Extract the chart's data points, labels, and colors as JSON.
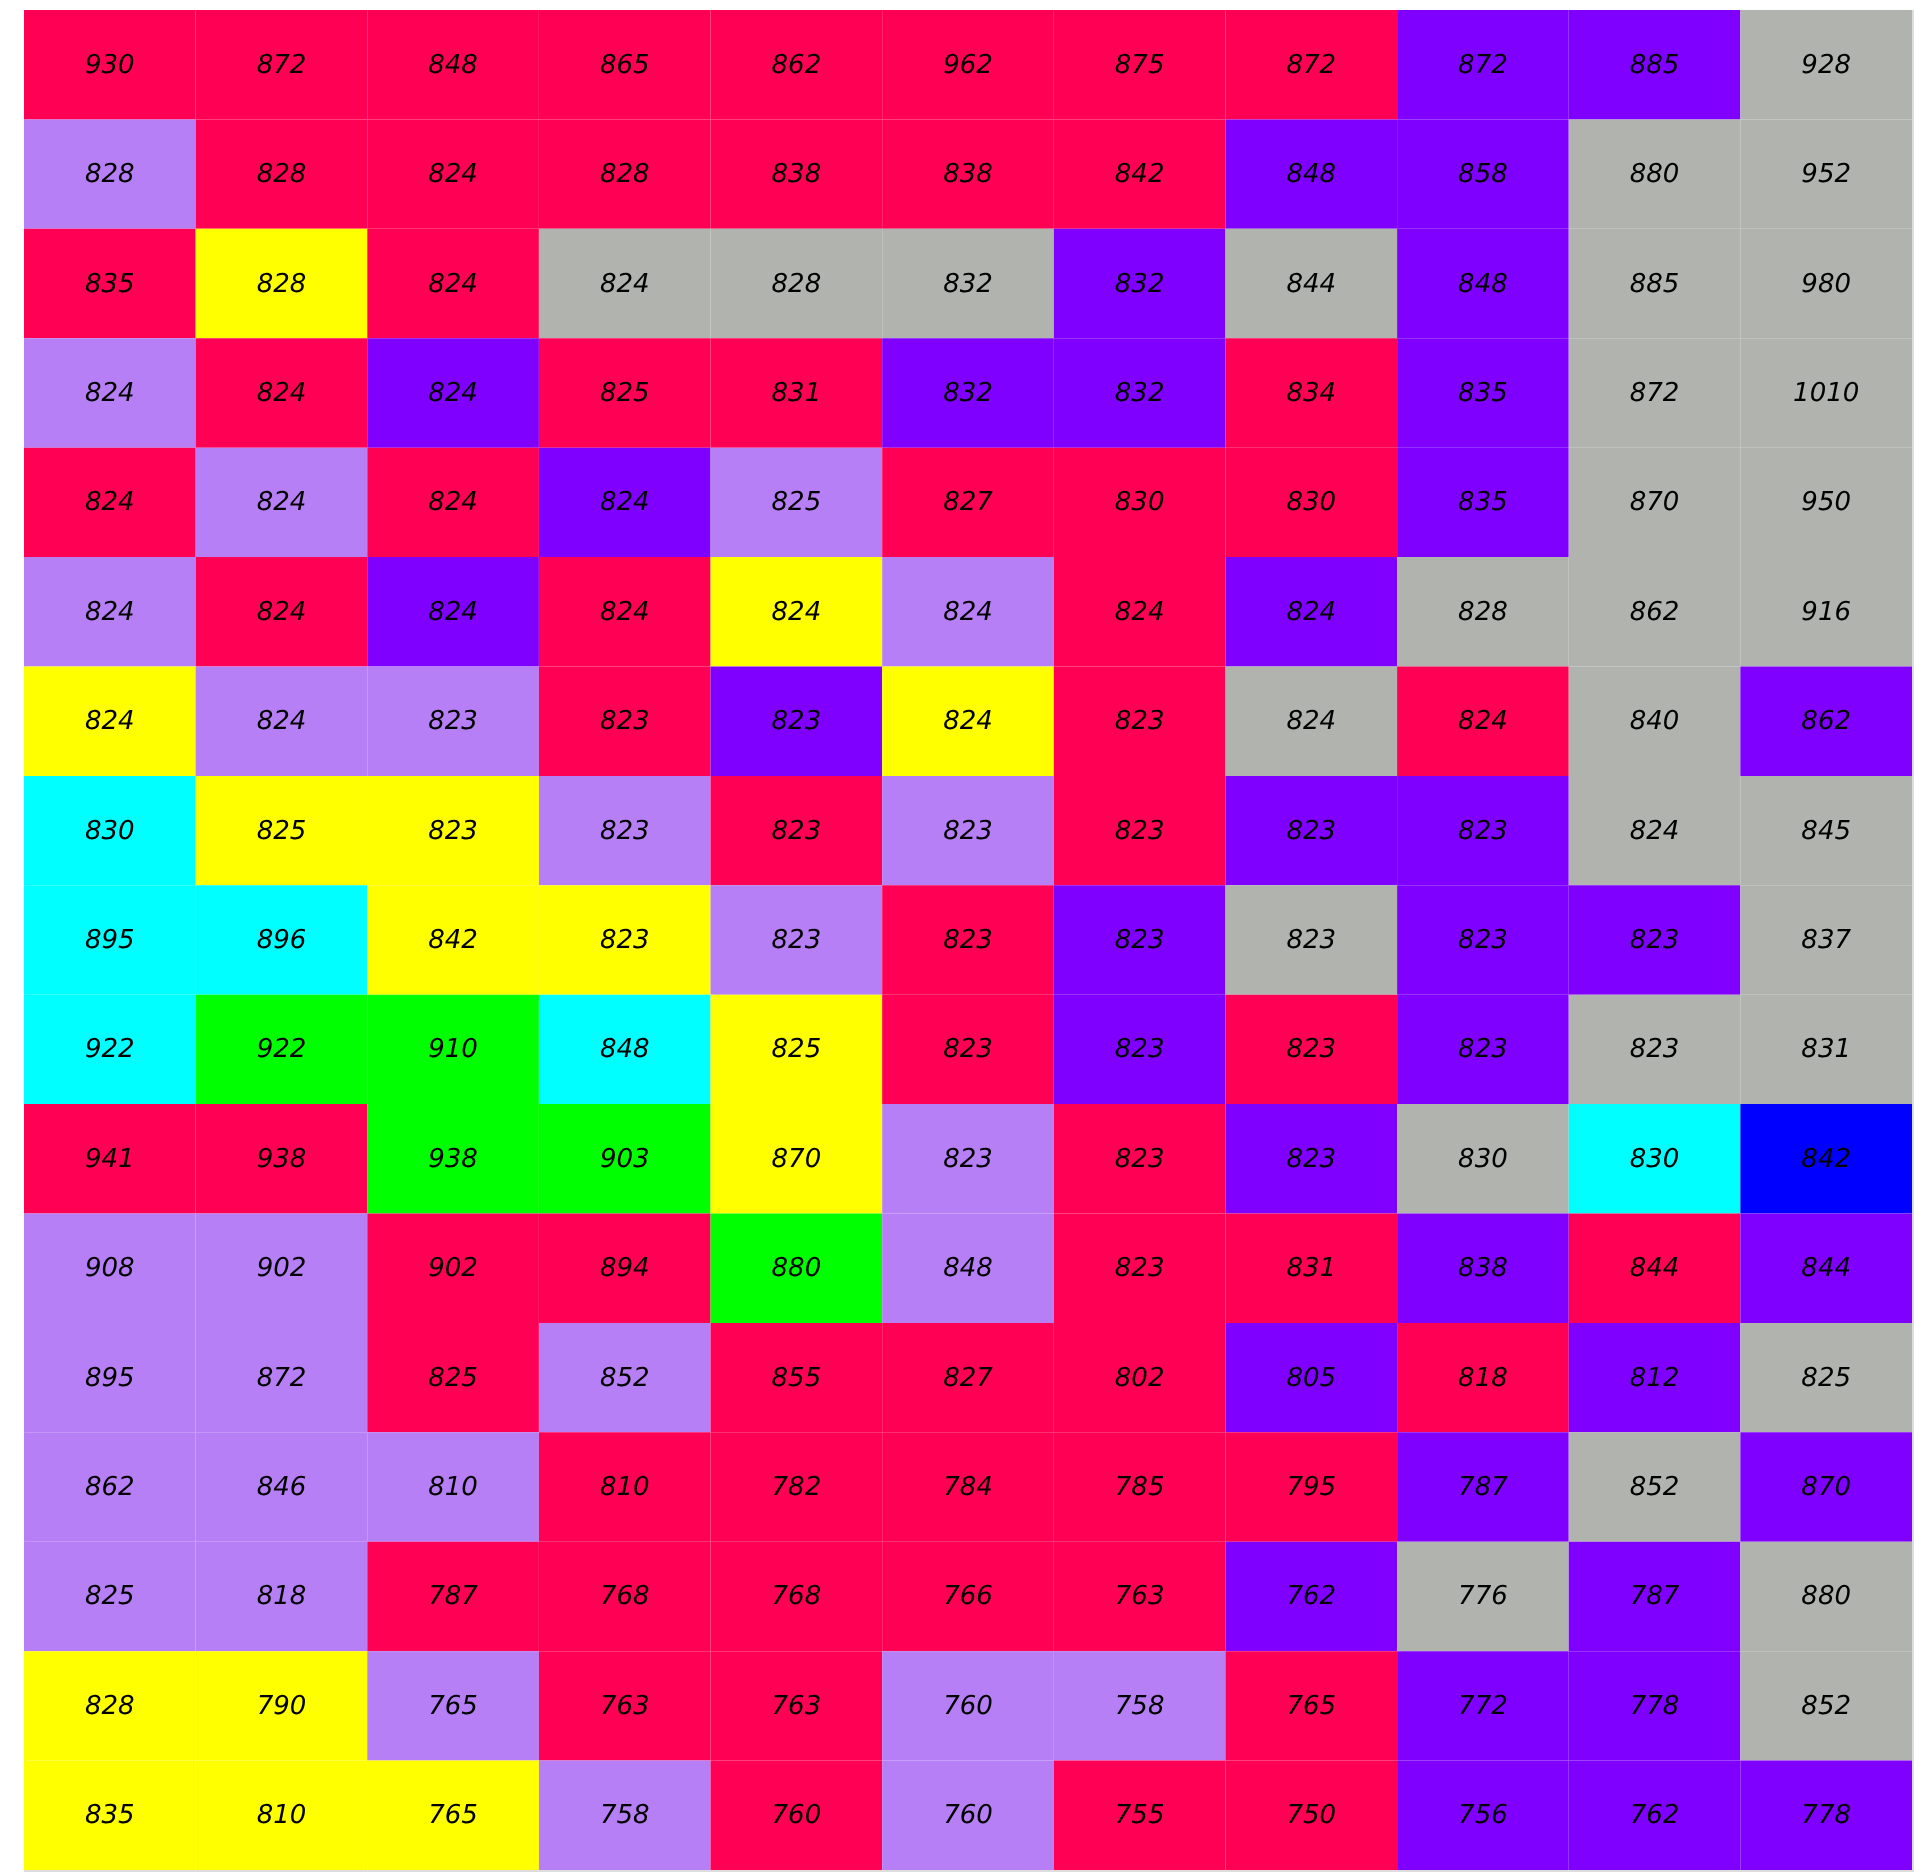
{
  "chart_data": {
    "type": "heatmap",
    "data_labels": true,
    "categories": [
      null,
      null,
      null,
      null,
      null,
      null,
      null,
      null,
      null,
      null,
      null
    ],
    "y_categories": [
      null,
      null,
      null,
      null,
      null,
      null,
      null,
      null,
      null,
      null,
      null,
      null,
      null,
      null,
      null,
      null,
      null
    ],
    "cells": [
      [
        930,
        872,
        848,
        865,
        862,
        962,
        875,
        872,
        872,
        885,
        928
      ],
      [
        828,
        828,
        824,
        828,
        838,
        838,
        842,
        848,
        858,
        880,
        952
      ],
      [
        835,
        828,
        824,
        824,
        828,
        832,
        832,
        844,
        848,
        885,
        980
      ],
      [
        824,
        824,
        824,
        825,
        831,
        832,
        832,
        834,
        835,
        872,
        1010
      ],
      [
        824,
        824,
        824,
        824,
        825,
        827,
        830,
        830,
        835,
        870,
        950
      ],
      [
        824,
        824,
        824,
        824,
        824,
        824,
        824,
        824,
        828,
        862,
        916
      ],
      [
        824,
        824,
        823,
        823,
        823,
        824,
        823,
        824,
        824,
        840,
        862
      ],
      [
        830,
        825,
        823,
        823,
        823,
        823,
        823,
        823,
        823,
        824,
        845
      ],
      [
        895,
        896,
        842,
        823,
        823,
        823,
        823,
        823,
        823,
        823,
        837
      ],
      [
        922,
        922,
        910,
        848,
        825,
        823,
        823,
        823,
        823,
        823,
        831
      ],
      [
        941,
        938,
        938,
        903,
        870,
        823,
        823,
        823,
        830,
        830,
        842
      ],
      [
        908,
        902,
        902,
        894,
        880,
        848,
        823,
        831,
        838,
        844,
        844
      ],
      [
        895,
        872,
        825,
        852,
        855,
        827,
        802,
        805,
        818,
        812,
        825
      ],
      [
        862,
        846,
        810,
        810,
        782,
        784,
        785,
        795,
        787,
        852,
        870
      ],
      [
        825,
        818,
        787,
        768,
        768,
        766,
        763,
        762,
        776,
        787,
        880
      ],
      [
        828,
        790,
        765,
        763,
        763,
        760,
        758,
        765,
        772,
        778,
        852
      ],
      [
        835,
        810,
        765,
        758,
        760,
        760,
        755,
        750,
        756,
        762,
        778
      ]
    ],
    "colors": [
      [
        "#ff0055",
        "#ff0055",
        "#ff0055",
        "#ff0055",
        "#ff0055",
        "#ff0055",
        "#ff0055",
        "#ff0055",
        "#8000ff",
        "#8000ff",
        "#b0b3ae"
      ],
      [
        "#b77ff5",
        "#ff0055",
        "#ff0055",
        "#ff0055",
        "#ff0055",
        "#ff0055",
        "#ff0055",
        "#8000ff",
        "#8000ff",
        "#b0b3ae",
        "#b0b3ae"
      ],
      [
        "#ff0055",
        "#ffff00",
        "#ff0055",
        "#b0b3ae",
        "#b0b3ae",
        "#b0b3ae",
        "#8000ff",
        "#b0b3ae",
        "#8000ff",
        "#b0b3ae",
        "#b0b3ae"
      ],
      [
        "#b77ff5",
        "#ff0055",
        "#8000ff",
        "#ff0055",
        "#ff0055",
        "#8000ff",
        "#8000ff",
        "#ff0055",
        "#8000ff",
        "#b0b3ae",
        "#b0b3ae"
      ],
      [
        "#ff0055",
        "#b77ff5",
        "#ff0055",
        "#8000ff",
        "#b77ff5",
        "#ff0055",
        "#ff0055",
        "#ff0055",
        "#8000ff",
        "#b0b3ae",
        "#b0b3ae"
      ],
      [
        "#b77ff5",
        "#ff0055",
        "#8000ff",
        "#ff0055",
        "#ffff00",
        "#b77ff5",
        "#ff0055",
        "#8000ff",
        "#b0b3ae",
        "#b0b3ae",
        "#b0b3ae"
      ],
      [
        "#ffff00",
        "#b77ff5",
        "#b77ff5",
        "#ff0055",
        "#8000ff",
        "#ffff00",
        "#ff0055",
        "#b0b3ae",
        "#ff0055",
        "#b0b3ae",
        "#8000ff"
      ],
      [
        "#00ffff",
        "#ffff00",
        "#ffff00",
        "#b77ff5",
        "#ff0055",
        "#b77ff5",
        "#ff0055",
        "#8000ff",
        "#8000ff",
        "#b0b3ae",
        "#b0b3ae"
      ],
      [
        "#00ffff",
        "#00ffff",
        "#ffff00",
        "#ffff00",
        "#b77ff5",
        "#ff0055",
        "#8000ff",
        "#b0b3ae",
        "#8000ff",
        "#8000ff",
        "#b0b3ae"
      ],
      [
        "#00ffff",
        "#00ff00",
        "#00ff00",
        "#00ffff",
        "#ffff00",
        "#ff0055",
        "#8000ff",
        "#ff0055",
        "#8000ff",
        "#b0b3ae",
        "#b0b3ae"
      ],
      [
        "#ff0055",
        "#ff0055",
        "#00ff00",
        "#00ff00",
        "#ffff00",
        "#b77ff5",
        "#ff0055",
        "#8000ff",
        "#b0b3ae",
        "#00ffff",
        "#0000ff"
      ],
      [
        "#b77ff5",
        "#b77ff5",
        "#ff0055",
        "#ff0055",
        "#00ff00",
        "#b77ff5",
        "#ff0055",
        "#ff0055",
        "#8000ff",
        "#ff0055",
        "#8000ff"
      ],
      [
        "#b77ff5",
        "#b77ff5",
        "#ff0055",
        "#b77ff5",
        "#ff0055",
        "#ff0055",
        "#ff0055",
        "#8000ff",
        "#ff0055",
        "#8000ff",
        "#b0b3ae"
      ],
      [
        "#b77ff5",
        "#b77ff5",
        "#b77ff5",
        "#ff0055",
        "#ff0055",
        "#ff0055",
        "#ff0055",
        "#ff0055",
        "#8000ff",
        "#b0b3ae",
        "#8000ff"
      ],
      [
        "#b77ff5",
        "#b77ff5",
        "#ff0055",
        "#ff0055",
        "#ff0055",
        "#ff0055",
        "#ff0055",
        "#8000ff",
        "#b0b3ae",
        "#8000ff",
        "#b0b3ae"
      ],
      [
        "#ffff00",
        "#ffff00",
        "#b77ff5",
        "#ff0055",
        "#ff0055",
        "#b77ff5",
        "#b77ff5",
        "#ff0055",
        "#8000ff",
        "#8000ff",
        "#b0b3ae"
      ],
      [
        "#ffff00",
        "#ffff00",
        "#ffff00",
        "#b77ff5",
        "#ff0055",
        "#b77ff5",
        "#ff0055",
        "#ff0055",
        "#8000ff",
        "#8000ff",
        "#8000ff"
      ]
    ]
  }
}
